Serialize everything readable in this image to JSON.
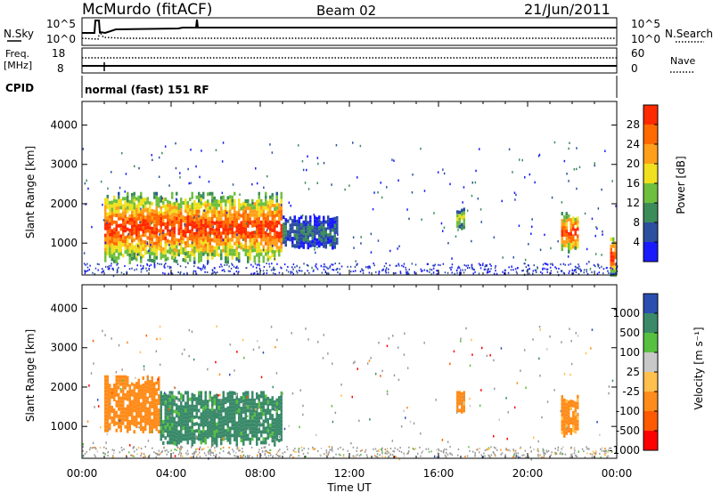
{
  "header": {
    "station": "McMurdo (fitACF)",
    "beam": "Beam 02",
    "date": "21/Jun/2011"
  },
  "noise_panel": {
    "left_label": "N.Sky",
    "right_label": "N.Search",
    "left_ticks": [
      "10^5",
      "10^0"
    ],
    "right_ticks": [
      "10^5",
      "10^0"
    ]
  },
  "freq_panel": {
    "left_label_1": "Freq.",
    "left_label_2": "[MHz]",
    "right_label": "Nave",
    "left_ticks": [
      "18",
      "8"
    ],
    "right_ticks": [
      "60",
      "0"
    ]
  },
  "cpid_panel": {
    "label": "CPID",
    "text": "normal (fast) 151 RF"
  },
  "colors": {
    "power_scale": [
      "#1a1aff",
      "#2d4fa0",
      "#3c8c5a",
      "#6fbf3f",
      "#f0e020",
      "#ff9f1a",
      "#ff6a00",
      "#ff2a00"
    ],
    "velocity_scale": [
      "#ff0000",
      "#ff5a00",
      "#ff8c1a",
      "#ffc04d",
      "#c8c8c8",
      "#58c040",
      "#3a8a6a",
      "#2a4fb0"
    ],
    "ground_scatter": "#9a9a9a"
  },
  "chart_data": [
    {
      "type": "heatmap",
      "parameter": "power",
      "ylabel": "Slant Range [km]",
      "yticks": [
        "1000",
        "2000",
        "3000",
        "4000"
      ],
      "ylim": [
        190,
        4600
      ],
      "xlim_hours": [
        0,
        24
      ],
      "colorbar": {
        "label": "Power [dB]",
        "ticks": [
          "4",
          "8",
          "12",
          "16",
          "20",
          "24",
          "28"
        ],
        "range": [
          0,
          32
        ]
      },
      "echo_regions": [
        {
          "t_start": 1.0,
          "t_end": 9.0,
          "range_min": 550,
          "range_max": 2300,
          "peak_dB": 28
        },
        {
          "t_start": 9.0,
          "t_end": 11.5,
          "range_min": 900,
          "range_max": 1700,
          "peak_dB": 8
        },
        {
          "t_start": 16.8,
          "t_end": 17.2,
          "range_min": 1400,
          "range_max": 1900,
          "peak_dB": 16
        },
        {
          "t_start": 21.5,
          "t_end": 22.3,
          "range_min": 800,
          "range_max": 1800,
          "peak_dB": 28
        },
        {
          "t_start": 23.7,
          "t_end": 24.0,
          "range_min": 190,
          "range_max": 1200,
          "peak_dB": 28
        }
      ]
    },
    {
      "type": "heatmap",
      "parameter": "velocity",
      "ylabel": "Slant Range [km]",
      "yticks": [
        "1000",
        "2000",
        "3000",
        "4000"
      ],
      "ylim": [
        190,
        4600
      ],
      "xlim_hours": [
        0,
        24
      ],
      "colorbar": {
        "label": "Velocity [m s⁻¹]",
        "ticks": [
          "1000",
          "500",
          "100",
          "25",
          "-25",
          "-100",
          "-500",
          "-1000"
        ]
      },
      "echo_regions": [
        {
          "t_start": 1.0,
          "t_end": 3.5,
          "range_min": 900,
          "range_max": 2300,
          "velocity": -300
        },
        {
          "t_start": 3.5,
          "t_end": 9.0,
          "range_min": 550,
          "range_max": 1900,
          "velocity": 200
        },
        {
          "t_start": 16.8,
          "t_end": 17.2,
          "range_min": 1400,
          "range_max": 1900,
          "velocity": -200
        },
        {
          "t_start": 21.5,
          "t_end": 22.3,
          "range_min": 800,
          "range_max": 1800,
          "velocity": -200
        }
      ],
      "xlabel": "Time UT",
      "xticks": [
        "00:00",
        "04:00",
        "08:00",
        "12:00",
        "16:00",
        "20:00",
        "00:00"
      ]
    }
  ]
}
